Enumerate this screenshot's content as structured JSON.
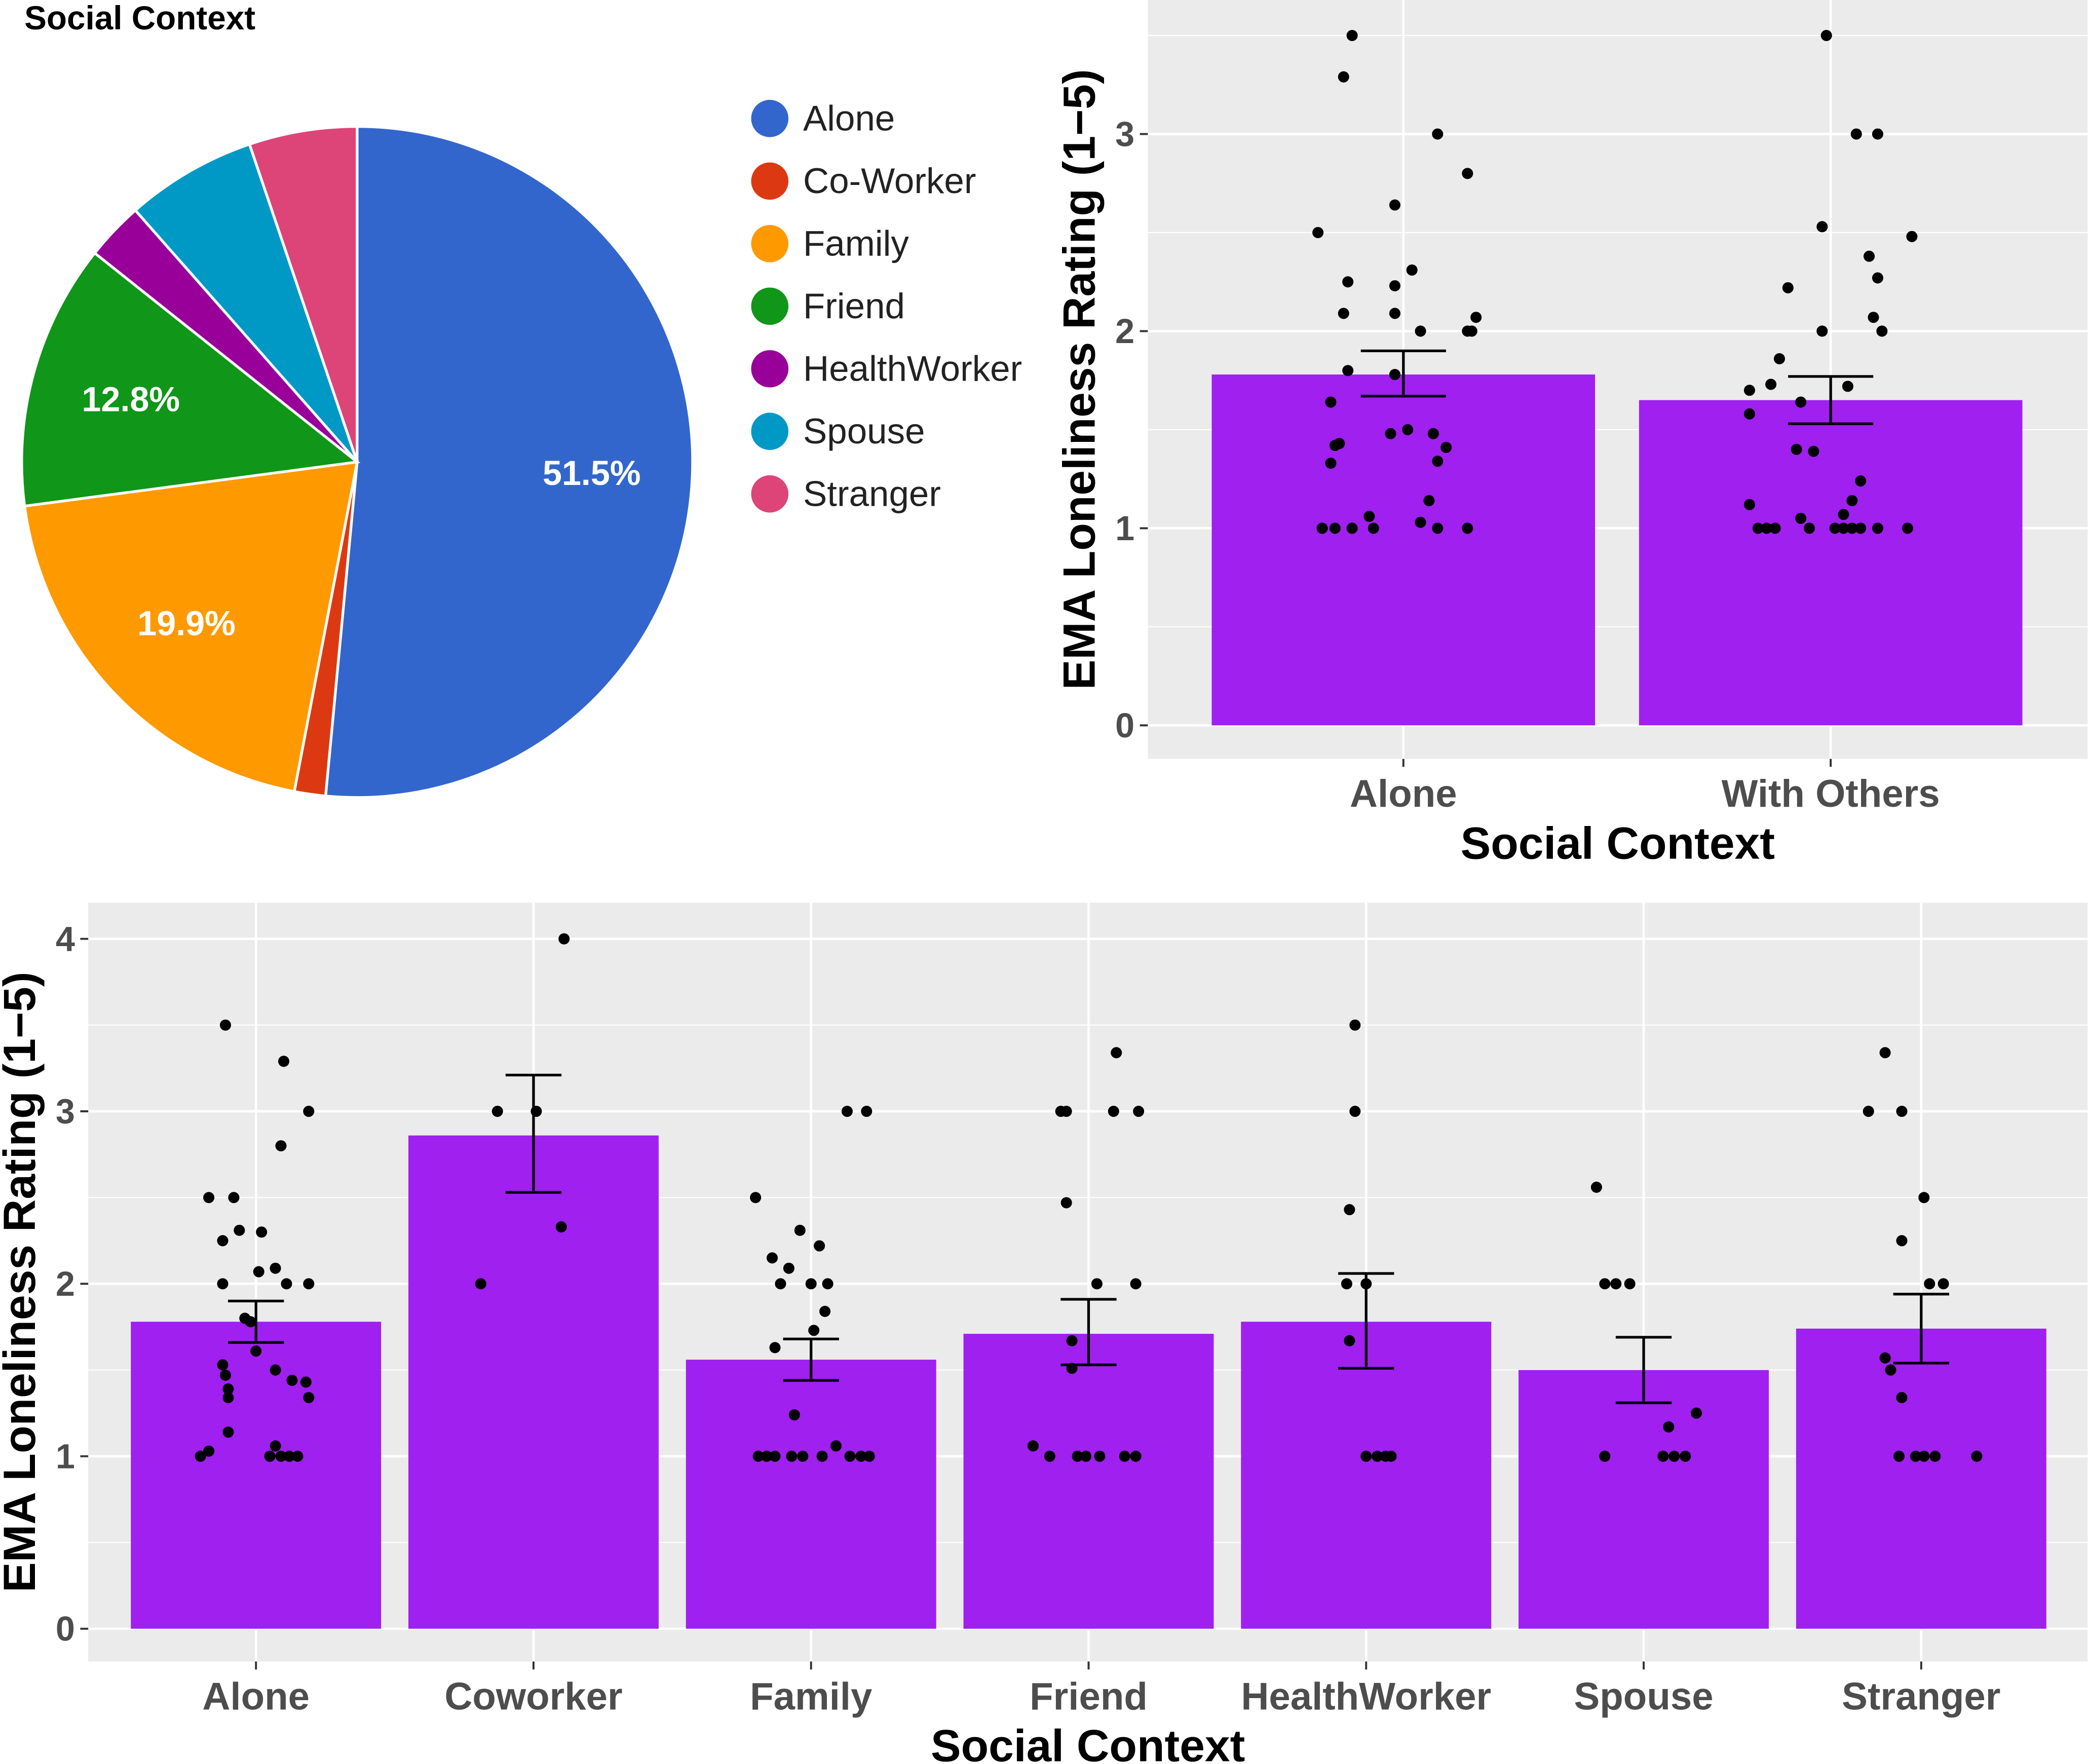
{
  "chart_data": [
    {
      "type": "pie",
      "title": "Social Context",
      "legend_position": "right",
      "slices": [
        {
          "label": "Alone",
          "value": 51.5,
          "display": "51.5%",
          "color": "#3366cc"
        },
        {
          "label": "Co-Worker",
          "value": 1.5,
          "display": "",
          "color": "#dc3912"
        },
        {
          "label": "Family",
          "value": 19.9,
          "display": "19.9%",
          "color": "#ff9900"
        },
        {
          "label": "Friend",
          "value": 12.8,
          "display": "12.8%",
          "color": "#109618"
        },
        {
          "label": "HealthWorker",
          "value": 2.8,
          "display": "",
          "color": "#990099"
        },
        {
          "label": "Spouse",
          "value": 6.3,
          "display": "",
          "color": "#0099c6"
        },
        {
          "label": "Stranger",
          "value": 5.2,
          "display": "",
          "color": "#dd4477"
        }
      ]
    },
    {
      "type": "bar",
      "xlabel": "Social Context",
      "ylabel": "EMA Loneliness Rating (1−5)",
      "ylim": [
        -0.17,
        3.68
      ],
      "yticks": [
        "0",
        "1",
        "2",
        "3"
      ],
      "bar_color": "#a020f0",
      "grid": true,
      "categories": [
        "Alone",
        "With Others"
      ],
      "values": [
        1.78,
        1.65
      ],
      "error": [
        [
          1.67,
          1.9
        ],
        [
          1.53,
          1.77
        ]
      ],
      "points": [
        [
          [
            -0.12,
            3.5
          ],
          [
            -0.14,
            3.29
          ],
          [
            0.08,
            3.0
          ],
          [
            0.15,
            2.8
          ],
          [
            -0.02,
            2.64
          ],
          [
            -0.2,
            2.5
          ],
          [
            0.02,
            2.31
          ],
          [
            -0.13,
            2.25
          ],
          [
            -0.02,
            2.23
          ],
          [
            -0.14,
            2.09
          ],
          [
            -0.02,
            2.09
          ],
          [
            0.04,
            2.0
          ],
          [
            0.15,
            2.0
          ],
          [
            0.16,
            2.0
          ],
          [
            0.17,
            2.07
          ],
          [
            -0.13,
            1.8
          ],
          [
            -0.02,
            1.78
          ],
          [
            -0.17,
            1.64
          ],
          [
            -0.15,
            1.43
          ],
          [
            -0.16,
            1.42
          ],
          [
            -0.03,
            1.48
          ],
          [
            0.01,
            1.5
          ],
          [
            0.07,
            1.48
          ],
          [
            0.1,
            1.41
          ],
          [
            0.08,
            1.34
          ],
          [
            -0.17,
            1.33
          ],
          [
            0.06,
            1.14
          ],
          [
            -0.08,
            1.06
          ],
          [
            0.04,
            1.03
          ],
          [
            -0.19,
            1
          ],
          [
            -0.16,
            1
          ],
          [
            -0.12,
            1
          ],
          [
            -0.07,
            1
          ],
          [
            0.08,
            1
          ],
          [
            0.15,
            1
          ]
        ],
        [
          [
            -0.01,
            3.5
          ],
          [
            0.06,
            3.0
          ],
          [
            0.11,
            3.0
          ],
          [
            0.19,
            2.48
          ],
          [
            -0.02,
            2.53
          ],
          [
            0.09,
            2.38
          ],
          [
            0.11,
            2.27
          ],
          [
            -0.1,
            2.22
          ],
          [
            0.1,
            2.07
          ],
          [
            0.12,
            2.0
          ],
          [
            -0.02,
            2.0
          ],
          [
            -0.12,
            1.86
          ],
          [
            -0.14,
            1.73
          ],
          [
            -0.19,
            1.7
          ],
          [
            0.04,
            1.72
          ],
          [
            -0.07,
            1.64
          ],
          [
            -0.19,
            1.58
          ],
          [
            -0.08,
            1.4
          ],
          [
            -0.04,
            1.39
          ],
          [
            0.07,
            1.24
          ],
          [
            0.05,
            1.14
          ],
          [
            -0.19,
            1.12
          ],
          [
            0.03,
            1.07
          ],
          [
            -0.07,
            1.05
          ],
          [
            -0.17,
            1
          ],
          [
            -0.15,
            1
          ],
          [
            -0.13,
            1
          ],
          [
            -0.05,
            1
          ],
          [
            0.01,
            1
          ],
          [
            0.03,
            1
          ],
          [
            0.05,
            1
          ],
          [
            0.07,
            1
          ],
          [
            0.11,
            1
          ],
          [
            0.18,
            1
          ]
        ]
      ]
    },
    {
      "type": "bar",
      "xlabel": "Social Context",
      "ylabel": "EMA Loneliness Rating (1−5)",
      "ylim": [
        -0.19,
        4.21
      ],
      "yticks": [
        "0",
        "1",
        "2",
        "3",
        "4"
      ],
      "bar_color": "#a020f0",
      "grid": true,
      "categories": [
        "Alone",
        "Coworker",
        "Family",
        "Friend",
        "HealthWorker",
        "Spouse",
        "Stranger"
      ],
      "values": [
        1.78,
        2.86,
        1.56,
        1.71,
        1.78,
        1.5,
        1.74
      ],
      "error": [
        [
          1.66,
          1.9
        ],
        [
          2.53,
          3.21
        ],
        [
          1.44,
          1.68
        ],
        [
          1.53,
          1.91
        ],
        [
          1.51,
          2.06
        ],
        [
          1.31,
          1.69
        ],
        [
          1.54,
          1.94
        ]
      ],
      "points": [
        [
          [
            -0.11,
            3.5
          ],
          [
            0.1,
            3.29
          ],
          [
            0.19,
            3.0
          ],
          [
            0.09,
            2.8
          ],
          [
            -0.17,
            2.5
          ],
          [
            -0.08,
            2.5
          ],
          [
            -0.06,
            2.31
          ],
          [
            0.02,
            2.3
          ],
          [
            -0.12,
            2.25
          ],
          [
            0.01,
            2.07
          ],
          [
            0.07,
            2.09
          ],
          [
            0.11,
            2.0
          ],
          [
            0.19,
            2.0
          ],
          [
            -0.12,
            2.0
          ],
          [
            -0.04,
            1.8
          ],
          [
            -0.02,
            1.78
          ],
          [
            0,
            1.61
          ],
          [
            -0.12,
            1.53
          ],
          [
            -0.11,
            1.47
          ],
          [
            0.07,
            1.5
          ],
          [
            0.13,
            1.44
          ],
          [
            0.18,
            1.43
          ],
          [
            -0.1,
            1.39
          ],
          [
            -0.1,
            1.34
          ],
          [
            0.19,
            1.34
          ],
          [
            -0.1,
            1.14
          ],
          [
            0.07,
            1.06
          ],
          [
            -0.17,
            1.03
          ],
          [
            -0.2,
            1
          ],
          [
            0.05,
            1
          ],
          [
            0.09,
            1
          ],
          [
            0.12,
            1
          ],
          [
            0.15,
            1
          ]
        ],
        [
          [
            0.11,
            4.0
          ],
          [
            -0.13,
            3.0
          ],
          [
            0.01,
            3.0
          ],
          [
            0.1,
            2.33
          ],
          [
            -0.19,
            2.0
          ]
        ],
        [
          [
            0.13,
            3
          ],
          [
            0.2,
            3
          ],
          [
            -0.2,
            2.5
          ],
          [
            -0.04,
            2.31
          ],
          [
            0.03,
            2.22
          ],
          [
            -0.14,
            2.15
          ],
          [
            -0.08,
            2.09
          ],
          [
            -0.11,
            2
          ],
          [
            0,
            2
          ],
          [
            0.06,
            2
          ],
          [
            0.05,
            1.84
          ],
          [
            0.01,
            1.73
          ],
          [
            -0.13,
            1.63
          ],
          [
            -0.06,
            1.24
          ],
          [
            0.09,
            1.06
          ],
          [
            -0.19,
            1
          ],
          [
            -0.16,
            1
          ],
          [
            -0.13,
            1
          ],
          [
            -0.07,
            1
          ],
          [
            -0.03,
            1
          ],
          [
            0.04,
            1
          ],
          [
            0.14,
            1
          ],
          [
            0.18,
            1
          ],
          [
            0.21,
            1
          ]
        ],
        [
          [
            0.1,
            3.34
          ],
          [
            -0.1,
            3
          ],
          [
            -0.08,
            3
          ],
          [
            0.09,
            3
          ],
          [
            0.18,
            3
          ],
          [
            -0.08,
            2.47
          ],
          [
            0.03,
            2
          ],
          [
            0.17,
            2
          ],
          [
            -0.06,
            1.67
          ],
          [
            -0.06,
            1.51
          ],
          [
            -0.2,
            1.06
          ],
          [
            -0.14,
            1
          ],
          [
            -0.04,
            1
          ],
          [
            -0.01,
            1
          ],
          [
            0.04,
            1
          ],
          [
            0.13,
            1
          ],
          [
            0.17,
            1
          ]
        ],
        [
          [
            -0.04,
            3.5
          ],
          [
            -0.04,
            3
          ],
          [
            -0.06,
            2.43
          ],
          [
            -0.07,
            2
          ],
          [
            0,
            2
          ],
          [
            -0.06,
            1.67
          ],
          [
            0,
            1
          ],
          [
            0.04,
            1
          ],
          [
            0.07,
            1
          ],
          [
            0.09,
            1
          ]
        ],
        [
          [
            -0.17,
            2.56
          ],
          [
            -0.14,
            2
          ],
          [
            -0.1,
            2
          ],
          [
            -0.05,
            2
          ],
          [
            0.19,
            1.25
          ],
          [
            0.09,
            1.17
          ],
          [
            -0.14,
            1
          ],
          [
            0.07,
            1
          ],
          [
            0.11,
            1
          ],
          [
            0.15,
            1
          ]
        ],
        [
          [
            -0.13,
            3.34
          ],
          [
            -0.19,
            3
          ],
          [
            -0.07,
            3
          ],
          [
            0.01,
            2.5
          ],
          [
            -0.07,
            2.25
          ],
          [
            0.03,
            2
          ],
          [
            0.08,
            2
          ],
          [
            -0.13,
            1.57
          ],
          [
            -0.11,
            1.5
          ],
          [
            -0.07,
            1.34
          ],
          [
            -0.08,
            1
          ],
          [
            -0.02,
            1
          ],
          [
            0.01,
            1
          ],
          [
            0.05,
            1
          ],
          [
            0.2,
            1
          ]
        ]
      ]
    }
  ]
}
